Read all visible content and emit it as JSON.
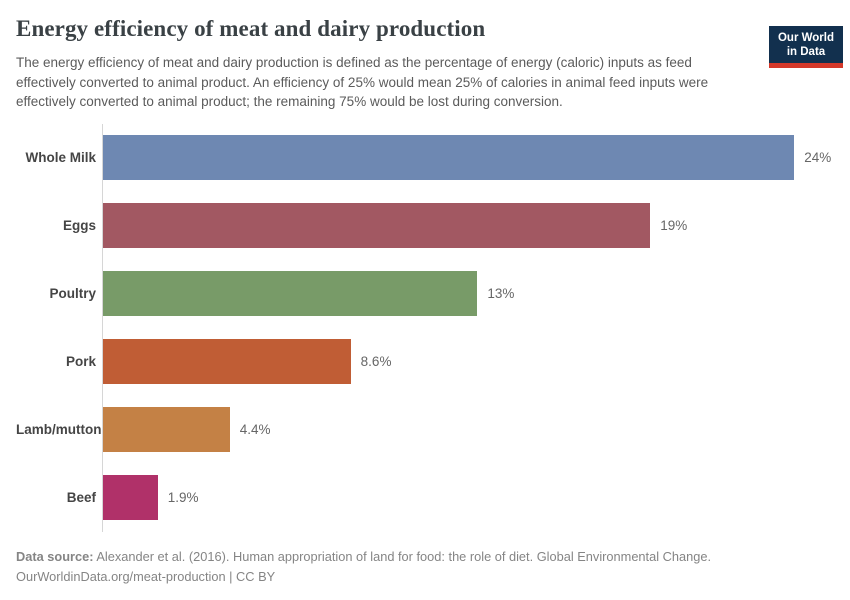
{
  "header": {
    "title": "Energy efficiency of meat and dairy production",
    "subtitle": "The energy efficiency of meat and dairy production is defined as the percentage of energy (caloric) inputs as feed effectively converted to animal product. An efficiency of 25% would mean 25% of calories in animal feed inputs were effectively converted to animal product; the remaining 75% would be lost during conversion.",
    "logo_line1": "Our World",
    "logo_line2": "in Data",
    "logo_bg_color": "#12304e",
    "logo_strip_color": "#d4382a"
  },
  "chart_data": {
    "type": "bar",
    "orientation": "horizontal",
    "title": "Energy efficiency of meat and dairy production",
    "categories": [
      "Whole Milk",
      "Eggs",
      "Poultry",
      "Pork",
      "Lamb/mutton",
      "Beef"
    ],
    "values": [
      24,
      19,
      13,
      8.6,
      4.4,
      1.9
    ],
    "value_labels": [
      "24%",
      "19%",
      "13%",
      "8.6%",
      "4.4%",
      "1.9%"
    ],
    "bar_colors": [
      "#6e88b2",
      "#a25862",
      "#789b68",
      "#c05d35",
      "#c48145",
      "#b03169"
    ],
    "unit": "%",
    "xlabel": "",
    "ylabel": "",
    "xlim": [
      0,
      24
    ],
    "grid": false,
    "legend": false
  },
  "footer": {
    "source_label": "Data source:",
    "source_text": " Alexander et al. (2016). Human appropriation of land for food: the role of diet. Global Environmental Change.",
    "url": "OurWorldinData.org/meat-production",
    "license": " | CC BY"
  }
}
